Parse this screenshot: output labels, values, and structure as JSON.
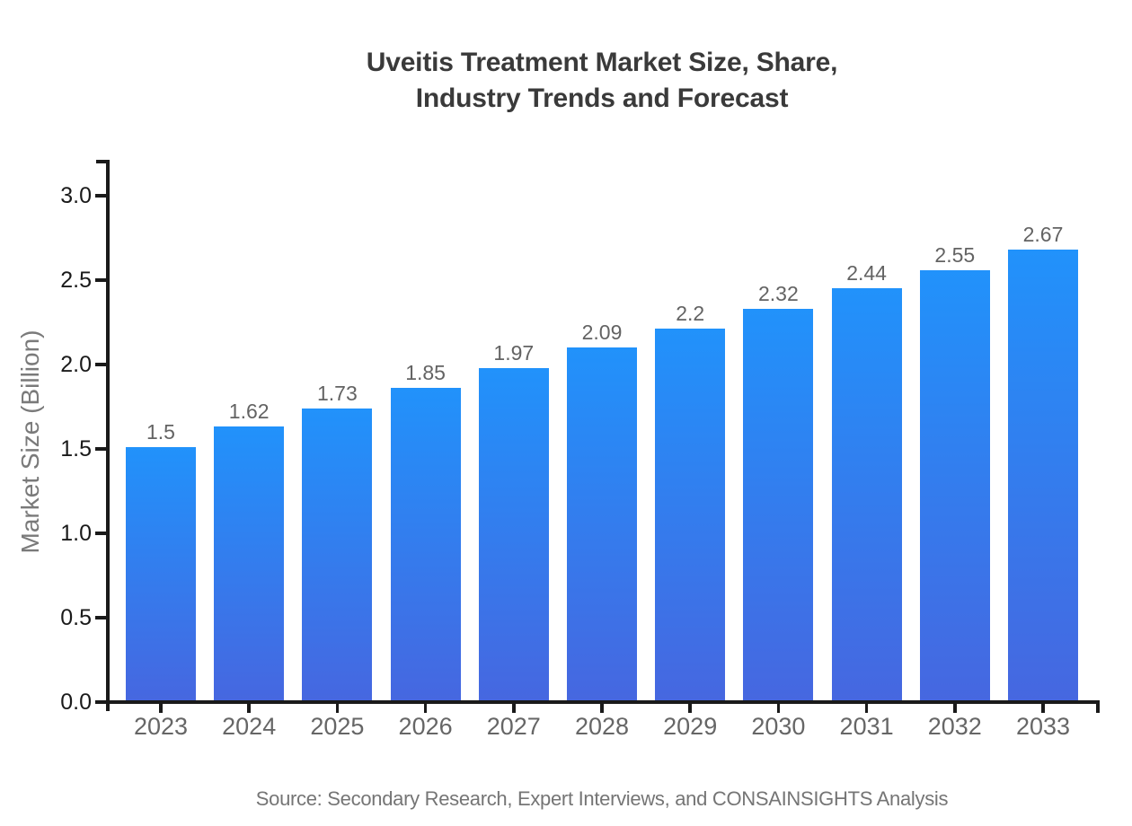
{
  "title": {
    "line1": "Uveitis Treatment Market Size, Share,",
    "line2": "Industry Trends and Forecast"
  },
  "y_axis_label": "Market Size (Billion)",
  "source": "Source: Secondary Research, Expert Interviews, and CONSAINSIGHTS Analysis",
  "colors": {
    "bar_gradient_top": "#2192fb",
    "bar_gradient_bottom": "#4667e0",
    "axis": "#1a1a1a",
    "bar_label_gray": "#636363",
    "tick_label_gray": "#666666",
    "title_gray": "#3a3a3a",
    "muted_gray": "#7a7a7a"
  },
  "chart_data": {
    "type": "bar",
    "title": "Uveitis Treatment Market Size, Share, Industry Trends and Forecast",
    "categories": [
      "2023",
      "2024",
      "2025",
      "2026",
      "2027",
      "2028",
      "2029",
      "2030",
      "2031",
      "2032",
      "2033"
    ],
    "values": [
      1.5,
      1.62,
      1.73,
      1.85,
      1.97,
      2.09,
      2.2,
      2.32,
      2.44,
      2.55,
      2.67
    ],
    "bar_labels": [
      "1.5",
      "1.62",
      "1.73",
      "1.85",
      "1.97",
      "2.09",
      "2.2",
      "2.32",
      "2.44",
      "2.55",
      "2.67"
    ],
    "xlabel": "",
    "ylabel": "Market Size (Billion)",
    "ylim": [
      0.0,
      3.2
    ],
    "yticks": [
      0.0,
      0.5,
      1.0,
      1.5,
      2.0,
      2.5,
      3.0
    ],
    "grid": false,
    "legend": false,
    "value_labels_shown": true,
    "source": "Source: Secondary Research, Expert Interviews, and CONSAINSIGHTS Analysis"
  }
}
